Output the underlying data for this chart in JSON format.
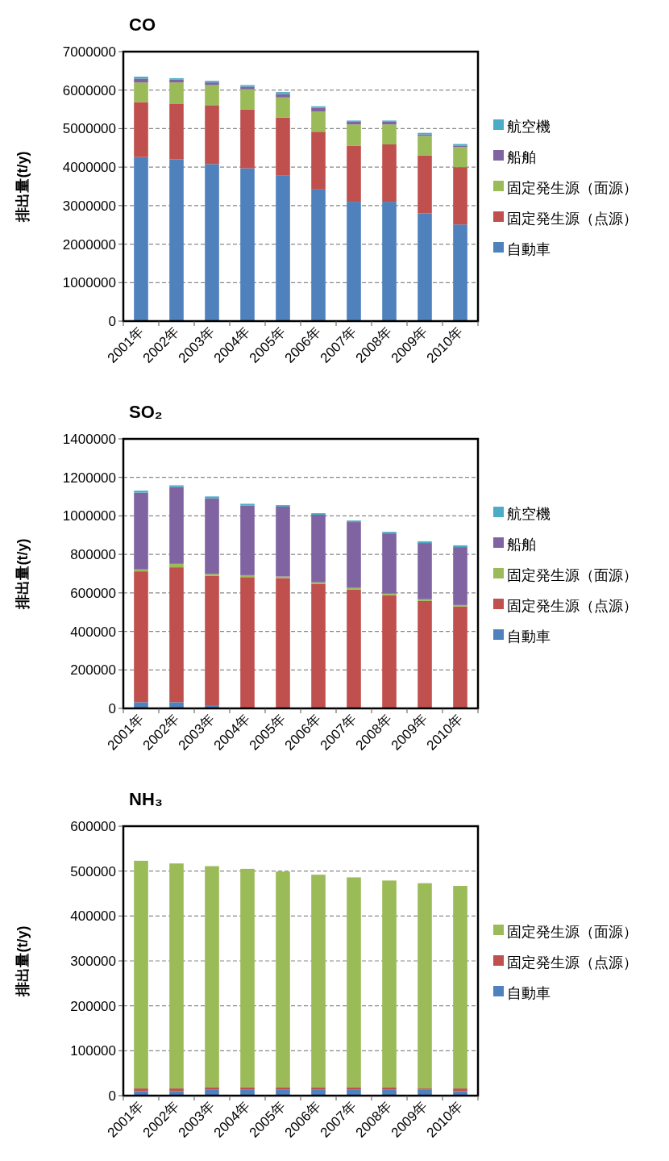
{
  "chart_data": [
    {
      "type": "bar",
      "title": "CO",
      "ylabel": "排出量(t/y)",
      "stacked": true,
      "grid": "y",
      "legend": "right",
      "ylim": [
        0,
        7000000
      ],
      "yticks": [
        0,
        1000000,
        2000000,
        3000000,
        4000000,
        5000000,
        6000000,
        7000000
      ],
      "categories": [
        "2001年",
        "2002年",
        "2003年",
        "2004年",
        "2005年",
        "2006年",
        "2007年",
        "2008年",
        "2009年",
        "2010年"
      ],
      "series": [
        {
          "name": "自動車",
          "color": "#4f81bd",
          "values": [
            4260000,
            4200000,
            4080000,
            3970000,
            3790000,
            3420000,
            3100000,
            3100000,
            2800000,
            2510000
          ]
        },
        {
          "name": "固定発生源（点源）",
          "color": "#c0504d",
          "values": [
            1430000,
            1450000,
            1530000,
            1530000,
            1500000,
            1500000,
            1450000,
            1490000,
            1500000,
            1490000
          ]
        },
        {
          "name": "固定発生源（面源）",
          "color": "#9bbb59",
          "values": [
            510000,
            550000,
            520000,
            520000,
            520000,
            520000,
            560000,
            520000,
            510000,
            520000
          ]
        },
        {
          "name": "船舶",
          "color": "#8064a2",
          "values": [
            100000,
            70000,
            70000,
            70000,
            90000,
            100000,
            70000,
            70000,
            40000,
            40000
          ]
        },
        {
          "name": "航空機",
          "color": "#4bacc6",
          "values": [
            50000,
            40000,
            40000,
            40000,
            50000,
            40000,
            30000,
            30000,
            40000,
            40000
          ]
        }
      ]
    },
    {
      "type": "bar",
      "title": "SO₂",
      "ylabel": "排出量(t/y)",
      "stacked": true,
      "grid": "y",
      "legend": "right",
      "ylim": [
        0,
        1400000
      ],
      "yticks": [
        0,
        200000,
        400000,
        600000,
        800000,
        1000000,
        1200000,
        1400000
      ],
      "categories": [
        "2001年",
        "2002年",
        "2003年",
        "2004年",
        "2005年",
        "2006年",
        "2007年",
        "2008年",
        "2009年",
        "2010年"
      ],
      "series": [
        {
          "name": "自動車",
          "color": "#4f81bd",
          "values": [
            32000,
            32000,
            13000,
            4000,
            1000,
            1000,
            1000,
            1000,
            1000,
            1000
          ]
        },
        {
          "name": "固定発生源（点源）",
          "color": "#c0504d",
          "values": [
            680000,
            701000,
            676000,
            678000,
            676000,
            645000,
            616000,
            587000,
            557000,
            528000
          ]
        },
        {
          "name": "固定発生源（面源）",
          "color": "#9bbb59",
          "values": [
            10000,
            18000,
            9000,
            10000,
            8000,
            9000,
            9000,
            8000,
            9000,
            8000
          ]
        },
        {
          "name": "船舶",
          "color": "#8064a2",
          "values": [
            399000,
            399000,
            393000,
            361000,
            363000,
            351000,
            342000,
            313000,
            292000,
            301000
          ]
        },
        {
          "name": "航空機",
          "color": "#4bacc6",
          "values": [
            10000,
            9000,
            10000,
            10000,
            8000,
            8000,
            8000,
            8000,
            9000,
            9000
          ]
        }
      ]
    },
    {
      "type": "bar",
      "title": "NH₃",
      "ylabel": "排出量(t/y)",
      "stacked": true,
      "grid": "y",
      "legend": "right",
      "ylim": [
        0,
        600000
      ],
      "yticks": [
        0,
        100000,
        200000,
        300000,
        400000,
        500000,
        600000
      ],
      "categories": [
        "2001年",
        "2002年",
        "2003年",
        "2004年",
        "2005年",
        "2006年",
        "2007年",
        "2008年",
        "2009年",
        "2010年"
      ],
      "series": [
        {
          "name": "自動車",
          "color": "#4f81bd",
          "values": [
            10000,
            10000,
            13000,
            13000,
            13000,
            13000,
            13000,
            13000,
            13000,
            10000
          ]
        },
        {
          "name": "固定発生源（点源）",
          "color": "#c0504d",
          "values": [
            6000,
            6000,
            6000,
            6000,
            6000,
            6000,
            6000,
            6000,
            3000,
            6000
          ]
        },
        {
          "name": "固定発生源（面源）",
          "color": "#9bbb59",
          "values": [
            507000,
            501000,
            492000,
            486000,
            480000,
            473000,
            467000,
            460000,
            457000,
            451000
          ]
        }
      ]
    }
  ]
}
